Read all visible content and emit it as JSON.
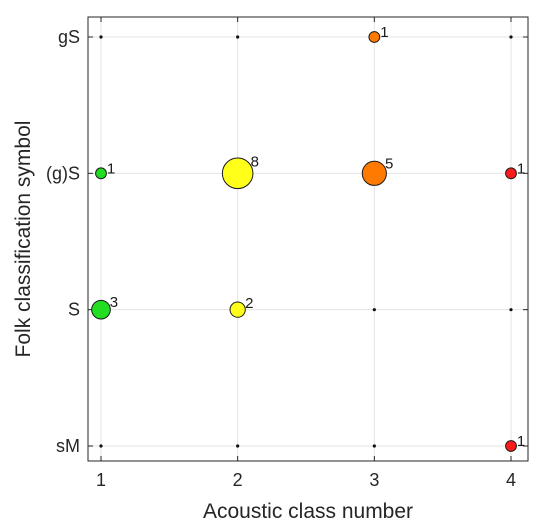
{
  "chart_data": {
    "type": "scatter",
    "title": "",
    "xlabel": "Acoustic class number",
    "ylabel": "Folk classification symbol",
    "x_ticks": [
      "1",
      "2",
      "3",
      "4"
    ],
    "y_categories": [
      "sM",
      "S",
      "(g)S",
      "gS"
    ],
    "xlim": [
      0.9,
      4.1
    ],
    "grid": true,
    "legend": "none",
    "class_colors": {
      "1": "#22dd22",
      "2": "#ffff1a",
      "3": "#ff7a00",
      "4": "#ff1a1a"
    },
    "points": [
      {
        "x": 1,
        "y": "(g)S",
        "count": 1
      },
      {
        "x": 1,
        "y": "S",
        "count": 3
      },
      {
        "x": 2,
        "y": "(g)S",
        "count": 8
      },
      {
        "x": 2,
        "y": "S",
        "count": 2
      },
      {
        "x": 3,
        "y": "gS",
        "count": 1
      },
      {
        "x": 3,
        "y": "(g)S",
        "count": 5
      },
      {
        "x": 4,
        "y": "(g)S",
        "count": 1
      },
      {
        "x": 4,
        "y": "sM",
        "count": 1
      }
    ]
  }
}
